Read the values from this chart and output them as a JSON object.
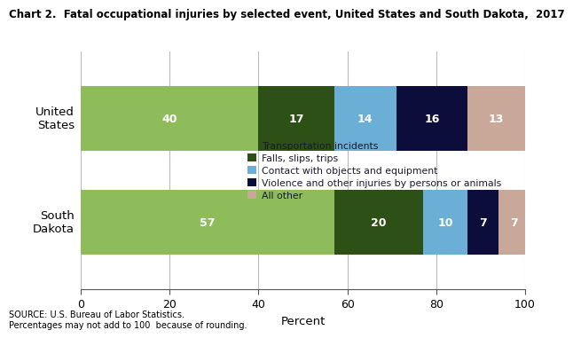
{
  "title": "Chart 2.  Fatal occupational injuries by selected event, United States and South Dakota,  2017",
  "categories": [
    "United\nStates",
    "South\nDakota"
  ],
  "segments": [
    {
      "label": "Transportation incidents",
      "color": "#8fbc5a",
      "values": [
        40,
        57
      ]
    },
    {
      "label": "Falls, slips, trips",
      "color": "#2d5016",
      "values": [
        17,
        20
      ]
    },
    {
      "label": "Contact with objects and equipment",
      "color": "#6baed6",
      "values": [
        14,
        10
      ]
    },
    {
      "label": "Violence and other injuries by persons or animals",
      "color": "#0d0d3b",
      "values": [
        16,
        7
      ]
    },
    {
      "label": "All other",
      "color": "#c9a89a",
      "values": [
        13,
        7
      ]
    }
  ],
  "xlim": [
    0,
    100
  ],
  "xticks": [
    0,
    20,
    40,
    60,
    80,
    100
  ],
  "xlabel": "Percent",
  "source_text": "SOURCE: U.S. Bureau of Labor Statistics.\nPercentages may not add to 100  because of rounding.",
  "bar_height": 0.62,
  "text_color": "#ffffff",
  "background_color": "#ffffff",
  "grid_color": "#bbbbbb",
  "legend_text_color": "#1a1a2e"
}
